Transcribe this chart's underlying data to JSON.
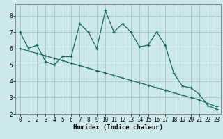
{
  "title": "",
  "xlabel": "Humidex (Indice chaleur)",
  "bg_color": "#cce8e8",
  "grid_color": "#aacccc",
  "line_color": "#1a6b5a",
  "line1_x": [
    0,
    1,
    2,
    3,
    4,
    5,
    6,
    7,
    8,
    9,
    10,
    11,
    12,
    13,
    14,
    15,
    16,
    17,
    18,
    19,
    20,
    21,
    22,
    23
  ],
  "line1_y": [
    7.0,
    6.0,
    6.2,
    5.2,
    5.0,
    5.5,
    5.5,
    7.5,
    7.0,
    6.0,
    8.3,
    7.0,
    7.5,
    7.0,
    6.1,
    6.2,
    7.0,
    6.2,
    4.5,
    3.7,
    3.6,
    3.2,
    2.5,
    2.3
  ],
  "line2_x": [
    0,
    1,
    2,
    3,
    4,
    5,
    6,
    7,
    8,
    9,
    10,
    11,
    12,
    13,
    14,
    15,
    16,
    17,
    18,
    19,
    20,
    21,
    22,
    23
  ],
  "line2_y": [
    6.0,
    5.85,
    5.7,
    5.55,
    5.4,
    5.25,
    5.1,
    4.95,
    4.8,
    4.65,
    4.5,
    4.35,
    4.2,
    4.05,
    3.9,
    3.75,
    3.6,
    3.45,
    3.3,
    3.15,
    3.0,
    2.85,
    2.65,
    2.45
  ],
  "xlim": [
    -0.5,
    23.5
  ],
  "ylim": [
    2.0,
    8.7
  ],
  "yticks": [
    2,
    3,
    4,
    5,
    6,
    7,
    8
  ],
  "xticks": [
    0,
    1,
    2,
    3,
    4,
    5,
    6,
    7,
    8,
    9,
    10,
    11,
    12,
    13,
    14,
    15,
    16,
    17,
    18,
    19,
    20,
    21,
    22,
    23
  ],
  "label_fontsize": 6.5,
  "tick_fontsize": 5.5
}
